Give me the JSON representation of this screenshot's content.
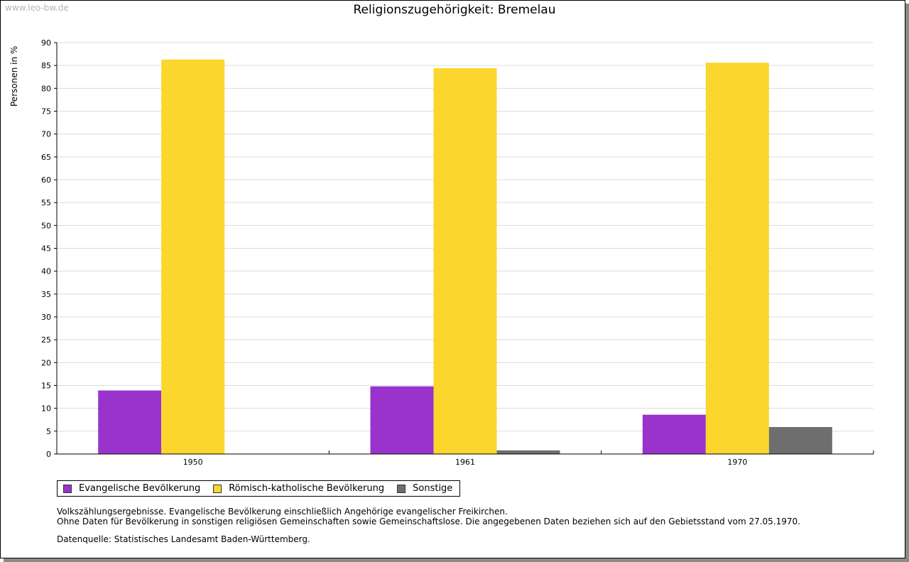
{
  "watermark": "www.leo-bw.de",
  "chart_data": {
    "type": "bar",
    "title": "Religionszugehörigkeit: Bremelau",
    "xlabel": "",
    "ylabel": "Personen in %",
    "ylim": [
      0,
      90
    ],
    "yticks": [
      0,
      5,
      10,
      15,
      20,
      25,
      30,
      35,
      40,
      45,
      50,
      55,
      60,
      65,
      70,
      75,
      80,
      85,
      90
    ],
    "categories": [
      "1950",
      "1961",
      "1970"
    ],
    "series": [
      {
        "name": "Evangelische Bevölkerung",
        "color": "#9933cc",
        "values": [
          13.9,
          14.8,
          8.6
        ]
      },
      {
        "name": "Römisch-katholische Bevölkerung",
        "color": "#fbd62d",
        "values": [
          86.3,
          84.4,
          85.6
        ]
      },
      {
        "name": "Sonstige",
        "color": "#6e6e6e",
        "values": [
          0,
          0.8,
          5.9
        ]
      }
    ],
    "grid": true,
    "legend_position": "bottom-left"
  },
  "notes": {
    "line1": "Volkszählungsergebnisse. Evangelische Bevölkerung einschließlich Angehörige evangelischer Freikirchen.",
    "line2": "Ohne Daten für Bevölkerung in sonstigen religiösen Gemeinschaften sowie Gemeinschaftslose. Die angegebenen Daten beziehen sich auf den Gebietsstand vom 27.05.1970.",
    "source": "Datenquelle: Statistisches Landesamt Baden-Württemberg."
  }
}
